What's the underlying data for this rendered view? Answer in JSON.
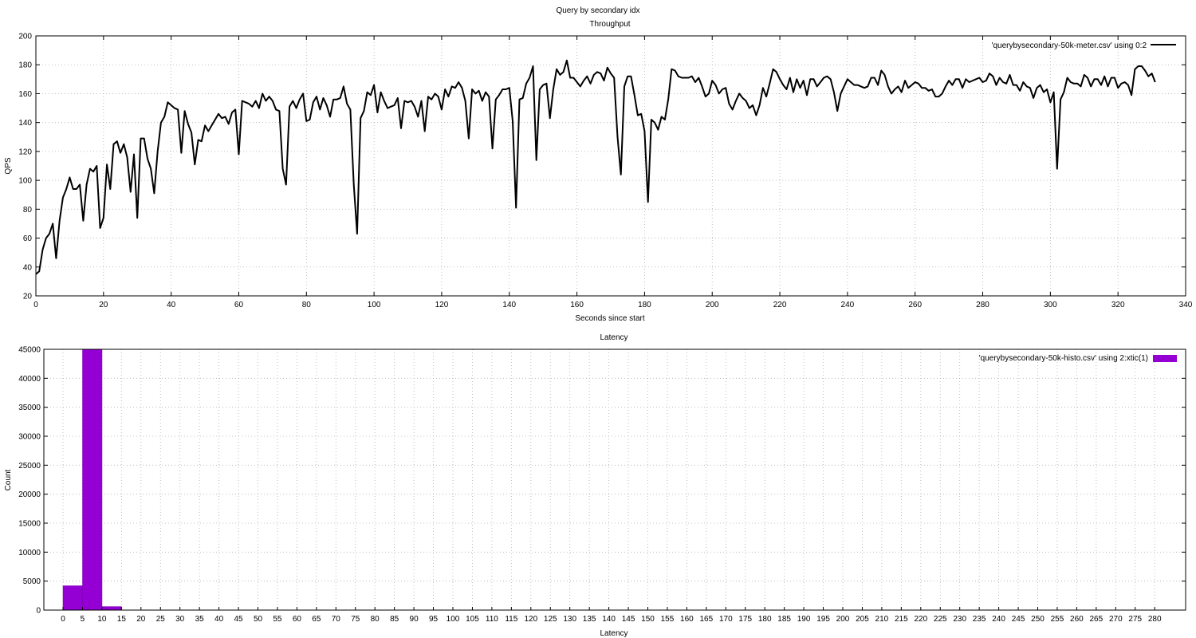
{
  "figure_title": "Query by secondary idx",
  "chart_data": [
    {
      "type": "line",
      "title": "Throughput",
      "xlabel": "Seconds since start",
      "ylabel": "QPS",
      "xlim": [
        0,
        340
      ],
      "ylim": [
        20,
        200
      ],
      "xticks": [
        0,
        20,
        40,
        60,
        80,
        100,
        120,
        140,
        160,
        180,
        200,
        220,
        240,
        260,
        280,
        300,
        320,
        340
      ],
      "yticks": [
        20,
        40,
        60,
        80,
        100,
        120,
        140,
        160,
        180,
        200
      ],
      "grid": true,
      "legend_position": "top-right",
      "series": [
        {
          "name": "'querybysecondary-50k-meter.csv' using 0:2",
          "color": "#000000",
          "x": [
            0,
            1,
            2,
            3,
            4,
            5,
            6,
            7,
            8,
            9,
            10,
            11,
            12,
            13,
            14,
            15,
            16,
            17,
            18,
            19,
            20,
            21,
            22,
            23,
            24,
            25,
            26,
            27,
            28,
            29,
            30,
            31,
            32,
            33,
            34,
            35,
            36,
            37,
            38,
            39,
            40,
            41,
            42,
            43,
            44,
            45,
            46,
            47,
            48,
            49,
            50,
            51,
            52,
            53,
            54,
            55,
            56,
            57,
            58,
            59,
            60,
            61,
            62,
            63,
            64,
            65,
            66,
            67,
            68,
            69,
            70,
            71,
            72,
            73,
            74,
            75,
            76,
            77,
            78,
            79,
            80,
            81,
            82,
            83,
            84,
            85,
            86,
            87,
            88,
            89,
            90,
            91,
            92,
            93,
            94,
            95,
            96,
            97,
            98,
            99,
            100,
            101,
            102,
            103,
            104,
            105,
            106,
            107,
            108,
            109,
            110,
            111,
            112,
            113,
            114,
            115,
            116,
            117,
            118,
            119,
            120,
            121,
            122,
            123,
            124,
            125,
            126,
            127,
            128,
            129,
            130,
            131,
            132,
            133,
            134,
            135,
            136,
            137,
            138,
            139,
            140,
            141,
            142,
            143,
            144,
            145,
            146,
            147,
            148,
            149,
            150,
            151,
            152,
            153,
            154,
            155,
            156,
            157,
            158,
            159,
            160,
            161,
            162,
            163,
            164,
            165,
            166,
            167,
            168,
            169,
            170,
            171,
            172,
            173,
            174,
            175,
            176,
            177,
            178,
            179,
            180,
            181,
            182,
            183,
            184,
            185,
            186,
            187,
            188,
            189,
            190,
            191,
            192,
            193,
            194,
            195,
            196,
            197,
            198,
            199,
            200,
            201,
            202,
            203,
            204,
            205,
            206,
            207,
            208,
            209,
            210,
            211,
            212,
            213,
            214,
            215,
            216,
            217,
            218,
            219,
            220,
            221,
            222,
            223,
            224,
            225,
            226,
            227,
            228,
            229,
            230,
            231,
            232,
            233,
            234,
            235,
            236,
            237,
            238,
            239,
            240,
            241,
            242,
            243,
            244,
            245,
            246,
            247,
            248,
            249,
            250,
            251,
            252,
            253,
            254,
            255,
            256,
            257,
            258,
            259,
            260,
            261,
            262,
            263,
            264,
            265,
            266,
            267,
            268,
            269,
            270,
            271,
            272,
            273,
            274,
            275,
            276,
            277,
            278,
            279,
            280,
            281,
            282,
            283,
            284,
            285,
            286,
            287,
            288,
            289,
            290,
            291,
            292,
            293,
            294,
            295,
            296,
            297,
            298,
            299,
            300,
            301,
            302,
            303,
            304,
            305,
            306,
            307,
            308,
            309,
            310,
            311,
            312,
            313,
            314,
            315,
            316,
            317,
            318,
            319,
            320,
            321,
            322,
            323,
            324,
            325,
            326,
            327,
            328,
            329,
            330,
            331
          ],
          "values": [
            35,
            37,
            52,
            60,
            63,
            70,
            46,
            72,
            88,
            94,
            102,
            94,
            94,
            97,
            72,
            97,
            108,
            106,
            110,
            67,
            74,
            111,
            94,
            125,
            127,
            119,
            125,
            116,
            92,
            118,
            74,
            129,
            129,
            115,
            108,
            91,
            120,
            140,
            144,
            154,
            152,
            150,
            149,
            119,
            148,
            139,
            133,
            111,
            128,
            127,
            138,
            134,
            138,
            142,
            146,
            143,
            144,
            139,
            147,
            149,
            118,
            155,
            154,
            153,
            151,
            155,
            150,
            160,
            155,
            158,
            155,
            149,
            148,
            108,
            97,
            151,
            155,
            150,
            156,
            160,
            141,
            142,
            154,
            158,
            149,
            157,
            152,
            144,
            156,
            156,
            157,
            165,
            153,
            149,
            97,
            63,
            143,
            148,
            161,
            159,
            166,
            147,
            161,
            155,
            150,
            151,
            152,
            157,
            136,
            155,
            154,
            155,
            151,
            144,
            155,
            134,
            158,
            156,
            160,
            158,
            149,
            163,
            158,
            165,
            164,
            168,
            164,
            155,
            129,
            163,
            160,
            162,
            155,
            161,
            158,
            122,
            156,
            159,
            163,
            163,
            164,
            141,
            81,
            156,
            157,
            167,
            171,
            179,
            114,
            163,
            166,
            167,
            143,
            163,
            177,
            173,
            175,
            183,
            171,
            171,
            168,
            165,
            169,
            172,
            167,
            173,
            175,
            174,
            169,
            178,
            174,
            171,
            130,
            104,
            165,
            172,
            172,
            159,
            145,
            146,
            134,
            85,
            142,
            140,
            135,
            144,
            142,
            156,
            177,
            176,
            172,
            171,
            171,
            171,
            172,
            168,
            171,
            165,
            158,
            160,
            169,
            166,
            160,
            163,
            164,
            153,
            149,
            155,
            160,
            157,
            155,
            150,
            152,
            145,
            152,
            164,
            158,
            167,
            177,
            175,
            170,
            166,
            163,
            171,
            161,
            170,
            164,
            169,
            159,
            170,
            170,
            165,
            168,
            171,
            172,
            170,
            161,
            148,
            160,
            165,
            170,
            168,
            166,
            166,
            165,
            164,
            165,
            171,
            171,
            166,
            176,
            173,
            165,
            160,
            163,
            165,
            161,
            169,
            164,
            166,
            168,
            167,
            164,
            164,
            162,
            163,
            158,
            158,
            160,
            165,
            169,
            166,
            170,
            170,
            164,
            170,
            168,
            169,
            170,
            171,
            168,
            169,
            174,
            172,
            166,
            171,
            168,
            167,
            173,
            166,
            166,
            162,
            168,
            165,
            164,
            157,
            164,
            166,
            161,
            163,
            154,
            161,
            108,
            156,
            161,
            171,
            168,
            167,
            167,
            165,
            173,
            171,
            165,
            170,
            170,
            166,
            172,
            165,
            171,
            171,
            164,
            167,
            168,
            166,
            159,
            177,
            179,
            179,
            176,
            172,
            174,
            168
          ]
        }
      ]
    },
    {
      "type": "bar",
      "title": "Latency",
      "xlabel": "Latency",
      "ylabel": "Count",
      "ylim": [
        0,
        45000
      ],
      "yticks": [
        0,
        5000,
        10000,
        15000,
        20000,
        25000,
        30000,
        35000,
        40000,
        45000
      ],
      "grid": true,
      "legend_position": "top-right",
      "categories": [
        "0",
        "5",
        "10",
        "15",
        "20",
        "25",
        "30",
        "35",
        "40",
        "45",
        "50",
        "55",
        "60",
        "65",
        "70",
        "75",
        "80",
        "85",
        "90",
        "95",
        "100",
        "105",
        "110",
        "115",
        "120",
        "125",
        "130",
        "135",
        "140",
        "145",
        "150",
        "155",
        "160",
        "165",
        "170",
        "175",
        "180",
        "185",
        "190",
        "195",
        "200",
        "205",
        "210",
        "215",
        "220",
        "225",
        "230",
        "235",
        "240",
        "245",
        "250",
        "255",
        "260",
        "265",
        "270",
        "275",
        "280"
      ],
      "series": [
        {
          "name": "'querybysecondary-50k-histo.csv' using 2:xtic(1)",
          "color": "#9400d3",
          "values": [
            4200,
            45000,
            600,
            60,
            30,
            20,
            15,
            15,
            10,
            10,
            10,
            8,
            8,
            6,
            6,
            5,
            5,
            4,
            0,
            0,
            0,
            0,
            0,
            0,
            0,
            0,
            0,
            0,
            0,
            0,
            0,
            0,
            0,
            0,
            0,
            0,
            0,
            0,
            0,
            0,
            0,
            0,
            0,
            0,
            0,
            0,
            0,
            0,
            0,
            0,
            0,
            0,
            0,
            0,
            0,
            0,
            0
          ]
        }
      ]
    }
  ]
}
